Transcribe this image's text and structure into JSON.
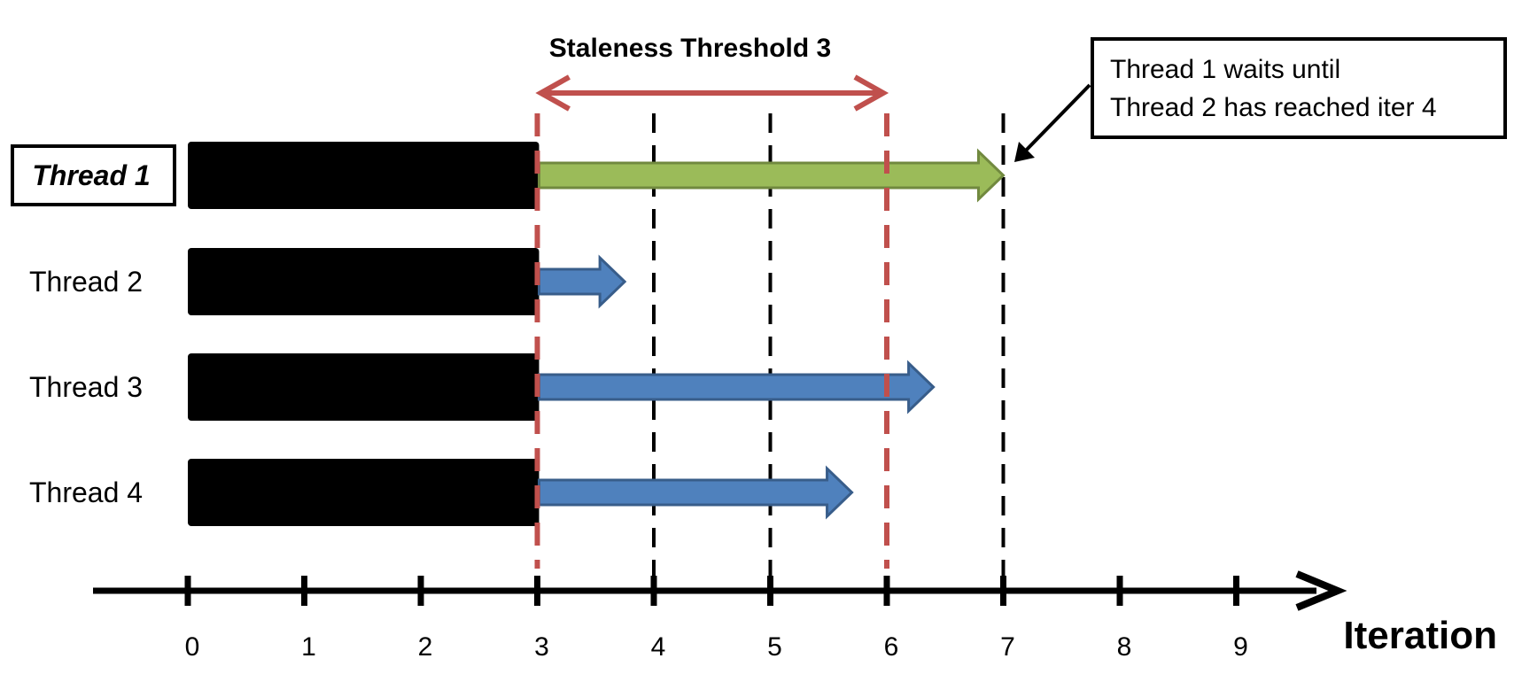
{
  "diagram": {
    "staleness_label": "Staleness Threshold 3",
    "staleness_range": [
      3,
      6
    ],
    "axis_label": "Iteration",
    "ticks": [
      "0",
      "1",
      "2",
      "3",
      "4",
      "5",
      "6",
      "7",
      "8",
      "9"
    ],
    "callout": {
      "line1": "Thread 1 waits until",
      "line2": "Thread 2 has reached iter 4"
    },
    "threads": [
      {
        "label": "Thread 1",
        "completed_iter": 3,
        "progress_iter": 7,
        "highlighted": true
      },
      {
        "label": "Thread 2",
        "completed_iter": 3,
        "progress_iter": 3.75,
        "highlighted": false
      },
      {
        "label": "Thread 3",
        "completed_iter": 3,
        "progress_iter": 6.4,
        "highlighted": false
      },
      {
        "label": "Thread 4",
        "completed_iter": 3,
        "progress_iter": 5.7,
        "highlighted": false
      }
    ],
    "black_dashed_iters": [
      4,
      5,
      7
    ],
    "red_dashed_iters": [
      3,
      6
    ],
    "colors": {
      "completed": "#000000",
      "highlight_arrow": "#9bbb59",
      "highlight_arrow_border": "#71893f",
      "arrow": "#4f81bd",
      "arrow_border": "#385d8a",
      "staleness": "#c0504d"
    }
  }
}
